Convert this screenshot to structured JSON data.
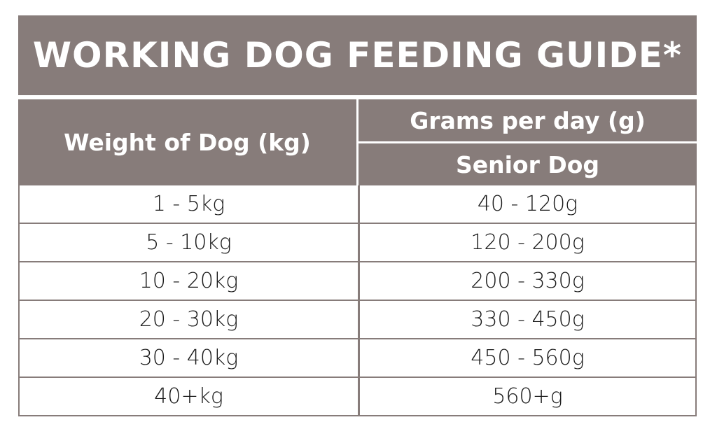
{
  "title": "WORKING DOG FEEDING GUIDE*",
  "headers": {
    "weight": "Weight of Dog (kg)",
    "grams": "Grams per day (g)",
    "senior": "Senior Dog"
  },
  "rows": [
    {
      "weight": "1 - 5kg",
      "grams": "40 - 120g"
    },
    {
      "weight": "5 - 10kg",
      "grams": "120 - 200g"
    },
    {
      "weight": "10 - 20kg",
      "grams": "200 - 330g"
    },
    {
      "weight": "20 - 30kg",
      "grams": "330 - 450g"
    },
    {
      "weight": "30 - 40kg",
      "grams": "450 - 560g"
    },
    {
      "weight": "40+kg",
      "grams": "560+g"
    }
  ],
  "colors": {
    "header": "#877c7a",
    "text": "#1a1a1a"
  }
}
